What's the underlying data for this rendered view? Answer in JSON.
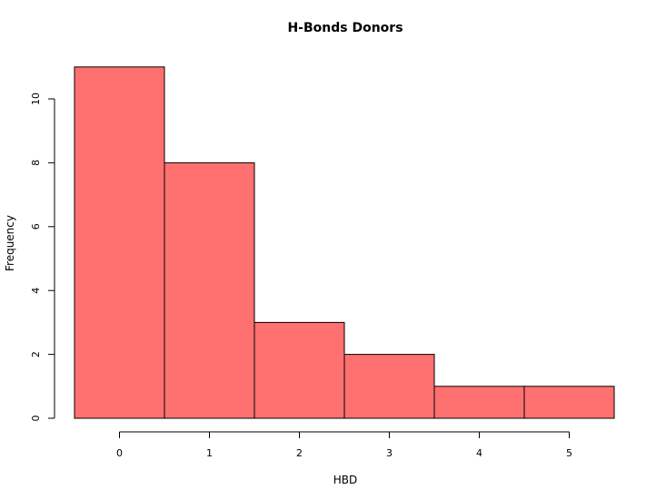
{
  "chart_data": {
    "type": "bar",
    "title": "H-Bonds Donors",
    "xlabel": "HBD",
    "ylabel": "Frequency",
    "bin_edges": [
      -0.5,
      0.5,
      1.5,
      2.5,
      3.5,
      4.5,
      5.5
    ],
    "values": [
      11,
      8,
      3,
      2,
      1,
      1
    ],
    "bar_color": "#ff7070",
    "x_ticks": [
      0,
      1,
      2,
      3,
      4,
      5
    ],
    "y_ticks": [
      0,
      2,
      4,
      6,
      8,
      10
    ],
    "xlim": [
      -0.5,
      5.5
    ],
    "ylim": [
      0,
      11
    ],
    "grid": false,
    "legend": "none"
  }
}
